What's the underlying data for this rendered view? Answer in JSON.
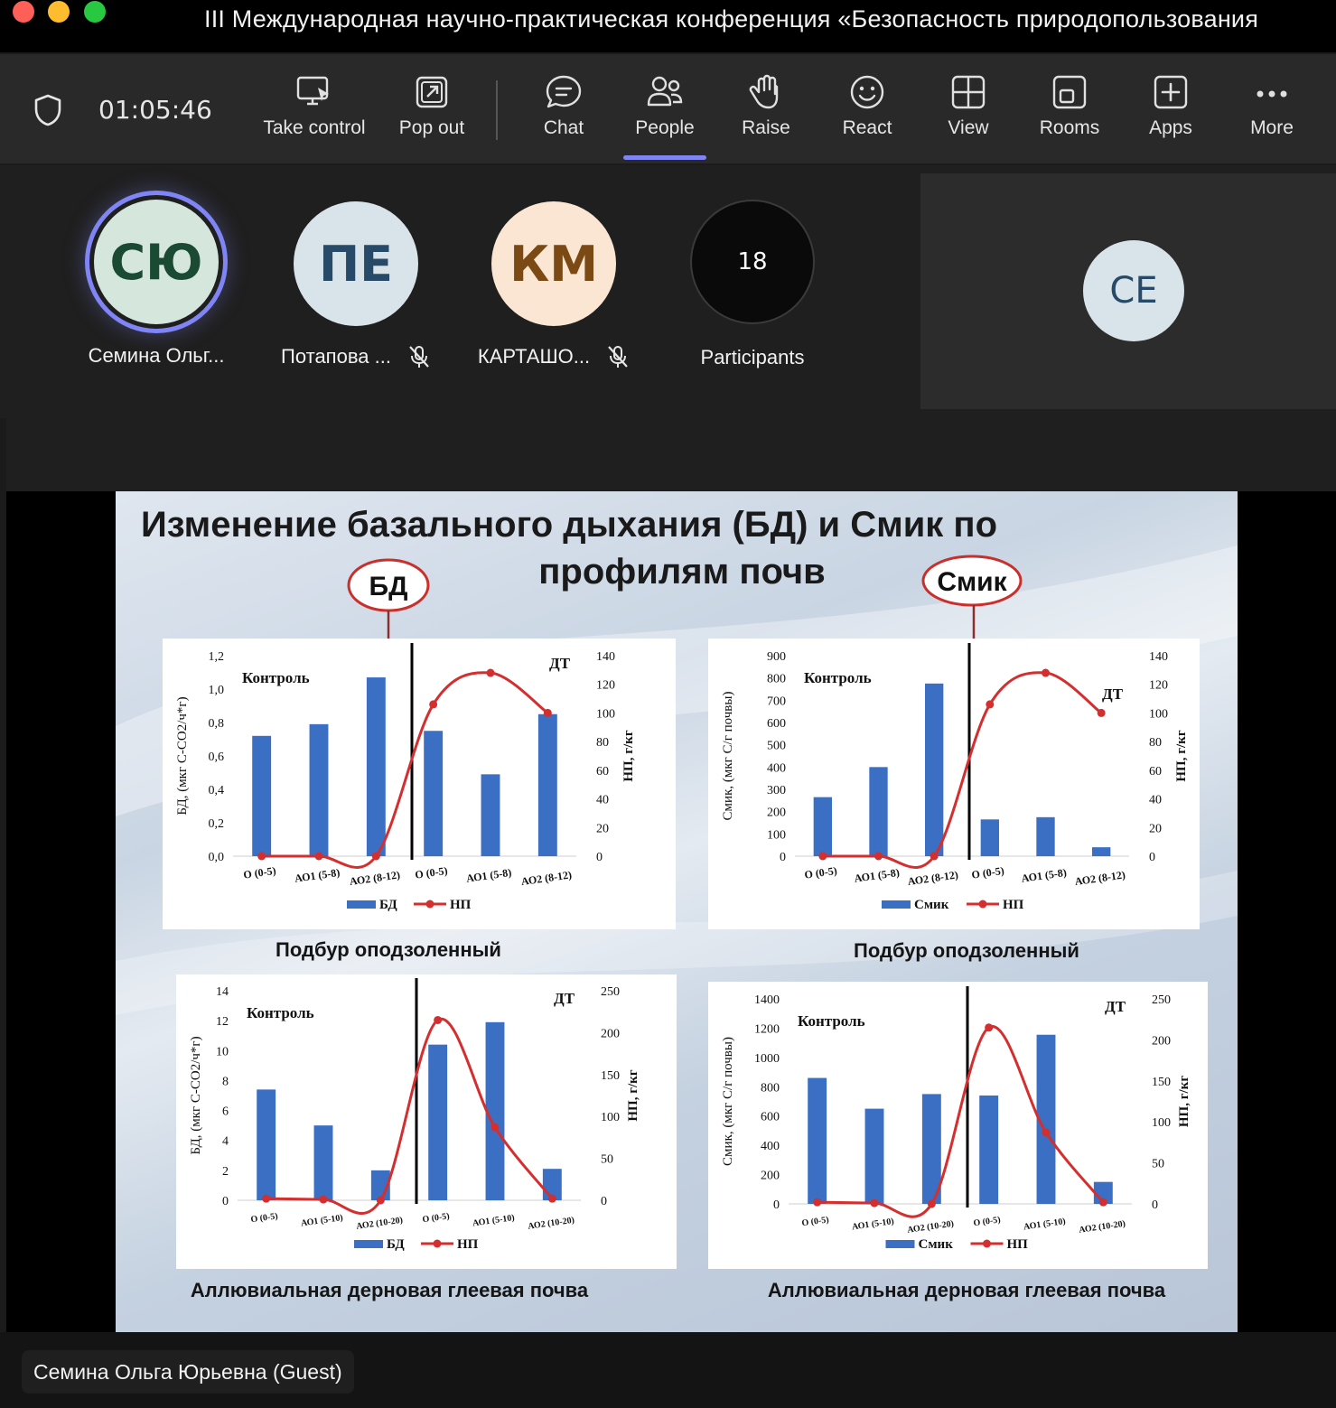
{
  "window": {
    "title": "III Международная научно-практическая конференция «Безопасность природопользования"
  },
  "toolbar": {
    "timer": "01:05:46",
    "buttons": [
      {
        "id": "take-control",
        "label": "Take control",
        "icon": "take-control-icon"
      },
      {
        "id": "pop-out",
        "label": "Pop out",
        "icon": "pop-out-icon"
      },
      {
        "id": "chat",
        "label": "Chat",
        "icon": "chat-icon"
      },
      {
        "id": "people",
        "label": "People",
        "icon": "people-icon",
        "active": true
      },
      {
        "id": "raise",
        "label": "Raise",
        "icon": "raise-hand-icon"
      },
      {
        "id": "react",
        "label": "React",
        "icon": "react-icon"
      },
      {
        "id": "view",
        "label": "View",
        "icon": "view-grid-icon"
      },
      {
        "id": "rooms",
        "label": "Rooms",
        "icon": "rooms-icon"
      },
      {
        "id": "apps",
        "label": "Apps",
        "icon": "apps-icon"
      },
      {
        "id": "more",
        "label": "More",
        "icon": "more-icon"
      }
    ],
    "accent": "#7f85f5"
  },
  "participants": {
    "tiles": [
      {
        "initials": "СЮ",
        "name": "Семина Ольг...",
        "speaking": true,
        "muted": false,
        "bg": "#d5e6dd",
        "fg": "#1b4a33"
      },
      {
        "initials": "ПЕ",
        "name": "Потапова ...",
        "speaking": false,
        "muted": true,
        "bg": "#d9e4ea",
        "fg": "#264a68"
      },
      {
        "initials": "КМ",
        "name": "КАРТАШО...",
        "speaking": false,
        "muted": true,
        "bg": "#fbe5d3",
        "fg": "#7b4a14"
      }
    ],
    "count": "18",
    "count_label": "Participants",
    "spotlight_initials": "СЕ"
  },
  "slide": {
    "title_line1": "Изменение базального дыхания (БД) и Смик по",
    "title_line2": "профилям почв",
    "callout_left": "БД",
    "callout_right": "Смик",
    "captions": [
      "Подбур оподзоленный",
      "Подбур оподзоленный",
      "Аллювиальная дерновая глеевая почва",
      "Аллювиальная дерновая глеевая почва"
    ]
  },
  "chart_data": [
    {
      "type": "bar",
      "categories": [
        "О (0-5)",
        "АО1 (5-8)",
        "АО2 (8-12)",
        "О (0-5)",
        "АО1 (5-8)",
        "АО2 (8-12)"
      ],
      "series": [
        {
          "name": "БД",
          "type": "bar",
          "axis": "left",
          "values": [
            0.72,
            0.79,
            1.07,
            0.75,
            0.49,
            0.85
          ],
          "color": "#3a6fc4"
        },
        {
          "name": "НП",
          "type": "line",
          "axis": "right",
          "values": [
            0,
            0,
            0,
            106,
            128,
            100
          ],
          "color": "#d42e2e"
        }
      ],
      "ylabel": "БД, (мкг С-СО2/ч*г)",
      "ylabel_right": "НП, г/кг",
      "ylim": [
        0,
        1.2
      ],
      "yticks": [
        "0,0",
        "0,2",
        "0,4",
        "0,6",
        "0,8",
        "1,0",
        "1,2"
      ],
      "ylim_right": [
        0,
        140
      ],
      "yticks_right": [
        "0",
        "20",
        "40",
        "60",
        "80",
        "100",
        "120",
        "140"
      ],
      "annotations": [
        "Контроль",
        "ДТ"
      ],
      "legend": "bottom"
    },
    {
      "type": "bar",
      "categories": [
        "О (0-5)",
        "АО1 (5-8)",
        "АО2 (8-12)",
        "О (0-5)",
        "АО1 (5-8)",
        "АО2 (8-12)"
      ],
      "series": [
        {
          "name": "Смик",
          "type": "bar",
          "axis": "left",
          "values": [
            265,
            400,
            775,
            165,
            175,
            40
          ],
          "color": "#3a6fc4"
        },
        {
          "name": "НП",
          "type": "line",
          "axis": "right",
          "values": [
            0,
            0,
            0,
            106,
            128,
            100
          ],
          "color": "#d42e2e"
        }
      ],
      "ylabel": "Смик, (мкг С/г почвы)",
      "ylabel_right": "НП, г/кг",
      "ylim": [
        0,
        900
      ],
      "yticks": [
        "0",
        "100",
        "200",
        "300",
        "400",
        "500",
        "600",
        "700",
        "800",
        "900"
      ],
      "ylim_right": [
        0,
        140
      ],
      "yticks_right": [
        "0",
        "20",
        "40",
        "60",
        "80",
        "100",
        "120",
        "140"
      ],
      "annotations": [
        "Контроль",
        "ДТ"
      ],
      "legend": "bottom"
    },
    {
      "type": "bar",
      "categories": [
        "О (0-5)",
        "АО1 (5-10)",
        "АО2 (10-20)",
        "О (0-5)",
        "АО1 (5-10)",
        "АО2 (10-20)"
      ],
      "series": [
        {
          "name": "БД",
          "type": "bar",
          "axis": "left",
          "values": [
            7.4,
            5.0,
            2.0,
            10.4,
            11.9,
            2.1
          ],
          "color": "#3a6fc4"
        },
        {
          "name": "НП",
          "type": "line",
          "axis": "right",
          "values": [
            2,
            1,
            0,
            215,
            87,
            2
          ],
          "color": "#d42e2e"
        }
      ],
      "ylabel": "БД, (мкг С-СО2/ч*г)",
      "ylabel_right": "НП, г/кг",
      "ylim": [
        0,
        14
      ],
      "yticks": [
        "0",
        "2",
        "4",
        "6",
        "8",
        "10",
        "12",
        "14"
      ],
      "ylim_right": [
        0,
        250
      ],
      "yticks_right": [
        "0",
        "50",
        "100",
        "150",
        "200",
        "250"
      ],
      "annotations": [
        "Контроль",
        "ДТ"
      ],
      "legend": "bottom"
    },
    {
      "type": "bar",
      "categories": [
        "О (0-5)",
        "АО1 (5-10)",
        "АО2 (10-20)",
        "О (0-5)",
        "АО1 (5-10)",
        "АО2 (10-20)"
      ],
      "series": [
        {
          "name": "Смик",
          "type": "bar",
          "axis": "left",
          "values": [
            860,
            650,
            750,
            740,
            1155,
            150
          ],
          "color": "#3a6fc4"
        },
        {
          "name": "НП",
          "type": "line",
          "axis": "right",
          "values": [
            2,
            1,
            0,
            215,
            87,
            2
          ],
          "color": "#d42e2e"
        }
      ],
      "ylabel": "Смик, (мкг С/г почвы)",
      "ylabel_right": "НП, г/кг",
      "ylim": [
        0,
        1400
      ],
      "yticks": [
        "0",
        "200",
        "400",
        "600",
        "800",
        "1000",
        "1200",
        "1400"
      ],
      "ylim_right": [
        0,
        250
      ],
      "yticks_right": [
        "0",
        "50",
        "100",
        "150",
        "200",
        "250"
      ],
      "annotations": [
        "Контроль",
        "ДТ"
      ],
      "legend": "bottom"
    }
  ],
  "presenter": {
    "name": "Семина Ольга Юрьевна (Guest)"
  }
}
